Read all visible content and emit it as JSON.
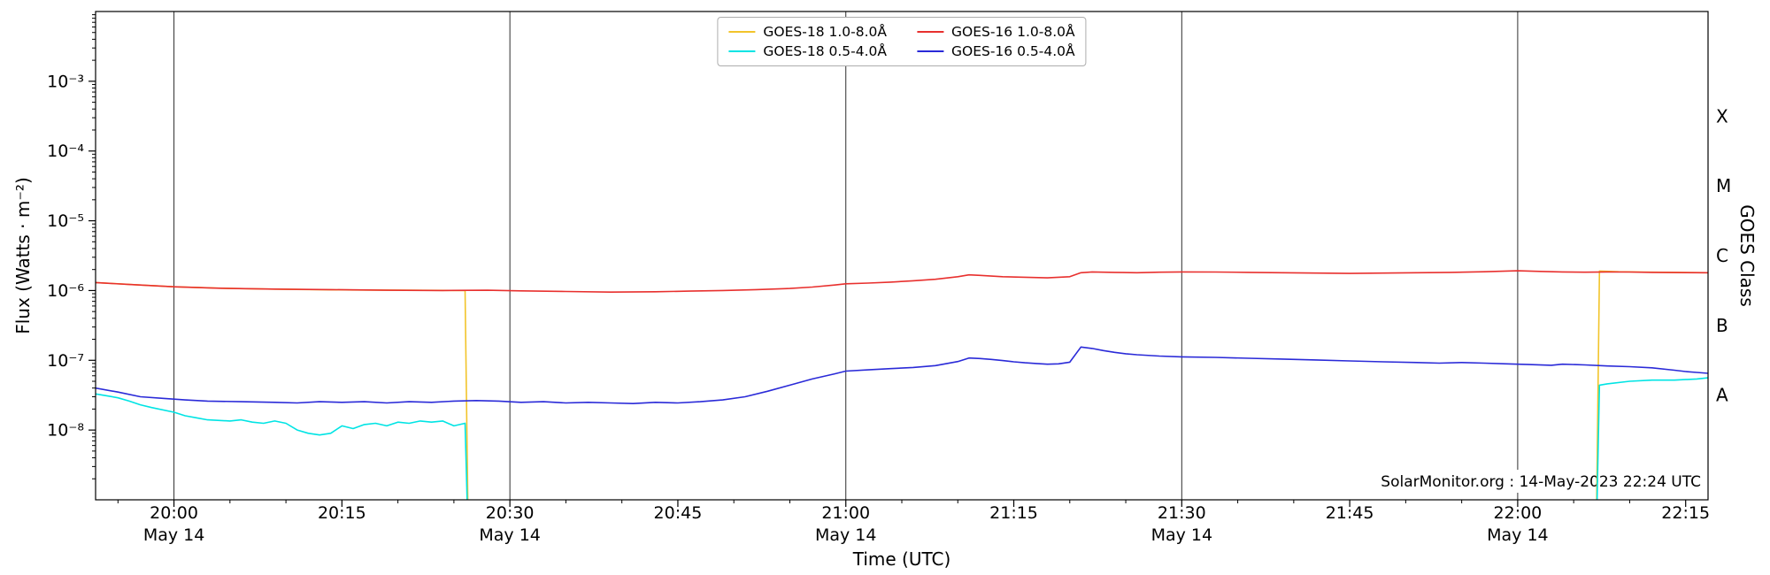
{
  "chart_data": {
    "type": "line",
    "title": "",
    "annotation": "SolarMonitor.org : 14-May-2023 22:24 UTC",
    "x_axis": {
      "label": "Time (UTC)",
      "unit": "minutes, t=0 corresponds to 19:53 UTC on 14-May-2023",
      "domain": [
        0,
        144
      ],
      "major_ticks": [
        {
          "t": 7,
          "label": "20:00",
          "date_label": "May 14",
          "gridline": true
        },
        {
          "t": 22,
          "label": "20:15"
        },
        {
          "t": 37,
          "label": "20:30",
          "date_label": "May 14",
          "gridline": true
        },
        {
          "t": 52,
          "label": "20:45"
        },
        {
          "t": 67,
          "label": "21:00",
          "date_label": "May 14",
          "gridline": true
        },
        {
          "t": 82,
          "label": "21:15"
        },
        {
          "t": 97,
          "label": "21:30",
          "date_label": "May 14",
          "gridline": true
        },
        {
          "t": 112,
          "label": "21:45"
        },
        {
          "t": 127,
          "label": "22:00",
          "date_label": "May 14",
          "gridline": true
        },
        {
          "t": 142,
          "label": "22:15"
        }
      ],
      "minor_tick_minutes": 5
    },
    "y_axis": {
      "label": "Flux (Watts · m⁻²)",
      "scale": "log",
      "domain_exp": [
        -9,
        -2
      ],
      "major_ticks": [
        {
          "exp": -3,
          "label": "10⁻³"
        },
        {
          "exp": -4,
          "label": "10⁻⁴"
        },
        {
          "exp": -5,
          "label": "10⁻⁵"
        },
        {
          "exp": -6,
          "label": "10⁻⁶"
        },
        {
          "exp": -7,
          "label": "10⁻⁷"
        },
        {
          "exp": -8,
          "label": "10⁻⁸"
        }
      ],
      "grid": false
    },
    "right_axis": {
      "label": "GOES Class",
      "ticks": [
        {
          "logv": -3.5,
          "label": "X"
        },
        {
          "logv": -4.5,
          "label": "M"
        },
        {
          "logv": -5.5,
          "label": "C"
        },
        {
          "logv": -6.5,
          "label": "B"
        },
        {
          "logv": -7.5,
          "label": "A"
        }
      ]
    },
    "legend_position": "upper center",
    "series": [
      {
        "name": "GOES-18 1.0-8.0Å",
        "color": "#f2c42a",
        "segments": [
          [
            [
              0,
              1.3e-06
            ],
            [
              4,
              1.2e-06
            ],
            [
              7,
              1.13e-06
            ],
            [
              12,
              1.07e-06
            ],
            [
              17,
              1.04e-06
            ],
            [
              23,
              1.02e-06
            ],
            [
              28,
              1.01e-06
            ],
            [
              33,
              1e-06
            ],
            [
              33.3,
              2e-10
            ]
          ],
          [
            [
              134,
              2e-10
            ],
            [
              134.3,
              1.9e-06
            ],
            [
              136,
              1.86e-06
            ],
            [
              138,
              1.84e-06
            ],
            [
              141,
              1.82e-06
            ],
            [
              144,
              1.8e-06
            ]
          ]
        ]
      },
      {
        "name": "GOES-18 0.5-4.0Å",
        "color": "#00e4e4",
        "segments": [
          [
            [
              0,
              3.3e-08
            ],
            [
              1,
              3.1e-08
            ],
            [
              2,
              2.9e-08
            ],
            [
              3,
              2.6e-08
            ],
            [
              4,
              2.3e-08
            ],
            [
              5,
              2.1e-08
            ],
            [
              7,
              1.8e-08
            ],
            [
              8,
              1.6e-08
            ],
            [
              9,
              1.5e-08
            ],
            [
              10,
              1.4e-08
            ],
            [
              12,
              1.35e-08
            ],
            [
              13,
              1.4e-08
            ],
            [
              14,
              1.3e-08
            ],
            [
              15,
              1.25e-08
            ],
            [
              16,
              1.35e-08
            ],
            [
              17,
              1.25e-08
            ],
            [
              18,
              1e-08
            ],
            [
              19,
              9e-09
            ],
            [
              20,
              8.5e-09
            ],
            [
              21,
              9e-09
            ],
            [
              22,
              1.15e-08
            ],
            [
              23,
              1.05e-08
            ],
            [
              24,
              1.2e-08
            ],
            [
              25,
              1.25e-08
            ],
            [
              26,
              1.15e-08
            ],
            [
              27,
              1.3e-08
            ],
            [
              28,
              1.25e-08
            ],
            [
              29,
              1.35e-08
            ],
            [
              30,
              1.3e-08
            ],
            [
              31,
              1.35e-08
            ],
            [
              32,
              1.15e-08
            ],
            [
              33,
              1.25e-08
            ],
            [
              33.3,
              2e-10
            ]
          ],
          [
            [
              134,
              2e-10
            ],
            [
              134.3,
              4.4e-08
            ],
            [
              135,
              4.6e-08
            ],
            [
              137,
              5e-08
            ],
            [
              139,
              5.2e-08
            ],
            [
              141,
              5.2e-08
            ],
            [
              143,
              5.4e-08
            ],
            [
              144,
              5.6e-08
            ]
          ]
        ]
      },
      {
        "name": "GOES-16 1.0-8.0Å",
        "color": "#e8302e",
        "segments": [
          [
            [
              0,
              1.3e-06
            ],
            [
              3,
              1.22e-06
            ],
            [
              7,
              1.13e-06
            ],
            [
              11,
              1.08e-06
            ],
            [
              16,
              1.05e-06
            ],
            [
              21,
              1.03e-06
            ],
            [
              26,
              1.01e-06
            ],
            [
              31,
              1e-06
            ],
            [
              35,
              1.01e-06
            ],
            [
              38,
              9.9e-07
            ],
            [
              42,
              9.7e-07
            ],
            [
              46,
              9.5e-07
            ],
            [
              50,
              9.6e-07
            ],
            [
              53,
              9.8e-07
            ],
            [
              56,
              1e-06
            ],
            [
              59,
              1.03e-06
            ],
            [
              62,
              1.07e-06
            ],
            [
              64,
              1.12e-06
            ],
            [
              66,
              1.2e-06
            ],
            [
              67,
              1.25e-06
            ],
            [
              69,
              1.28e-06
            ],
            [
              71,
              1.32e-06
            ],
            [
              73,
              1.38e-06
            ],
            [
              75,
              1.45e-06
            ],
            [
              77,
              1.58e-06
            ],
            [
              78,
              1.68e-06
            ],
            [
              79,
              1.65e-06
            ],
            [
              81,
              1.58e-06
            ],
            [
              83,
              1.55e-06
            ],
            [
              85,
              1.52e-06
            ],
            [
              86,
              1.55e-06
            ],
            [
              87,
              1.58e-06
            ],
            [
              88,
              1.8e-06
            ],
            [
              89,
              1.85e-06
            ],
            [
              91,
              1.82e-06
            ],
            [
              93,
              1.8e-06
            ],
            [
              95,
              1.83e-06
            ],
            [
              97,
              1.85e-06
            ],
            [
              100,
              1.84e-06
            ],
            [
              103,
              1.82e-06
            ],
            [
              106,
              1.8e-06
            ],
            [
              109,
              1.78e-06
            ],
            [
              112,
              1.76e-06
            ],
            [
              115,
              1.78e-06
            ],
            [
              118,
              1.8e-06
            ],
            [
              121,
              1.82e-06
            ],
            [
              124,
              1.86e-06
            ],
            [
              127,
              1.92e-06
            ],
            [
              129,
              1.88e-06
            ],
            [
              131,
              1.85e-06
            ],
            [
              133,
              1.83e-06
            ],
            [
              135,
              1.85e-06
            ],
            [
              137,
              1.84e-06
            ],
            [
              139,
              1.82e-06
            ],
            [
              141,
              1.81e-06
            ],
            [
              144,
              1.8e-06
            ]
          ]
        ]
      },
      {
        "name": "GOES-16 0.5-4.0Å",
        "color": "#2a2ad8",
        "segments": [
          [
            [
              0,
              4e-08
            ],
            [
              2,
              3.5e-08
            ],
            [
              4,
              3e-08
            ],
            [
              6,
              2.85e-08
            ],
            [
              8,
              2.7e-08
            ],
            [
              10,
              2.6e-08
            ],
            [
              13,
              2.55e-08
            ],
            [
              16,
              2.5e-08
            ],
            [
              18,
              2.45e-08
            ],
            [
              20,
              2.55e-08
            ],
            [
              22,
              2.5e-08
            ],
            [
              24,
              2.55e-08
            ],
            [
              26,
              2.45e-08
            ],
            [
              28,
              2.55e-08
            ],
            [
              30,
              2.5e-08
            ],
            [
              32,
              2.6e-08
            ],
            [
              34,
              2.65e-08
            ],
            [
              36,
              2.6e-08
            ],
            [
              38,
              2.5e-08
            ],
            [
              40,
              2.55e-08
            ],
            [
              42,
              2.45e-08
            ],
            [
              44,
              2.5e-08
            ],
            [
              46,
              2.45e-08
            ],
            [
              48,
              2.4e-08
            ],
            [
              50,
              2.5e-08
            ],
            [
              52,
              2.45e-08
            ],
            [
              54,
              2.55e-08
            ],
            [
              56,
              2.7e-08
            ],
            [
              58,
              3e-08
            ],
            [
              60,
              3.6e-08
            ],
            [
              62,
              4.4e-08
            ],
            [
              64,
              5.4e-08
            ],
            [
              66,
              6.4e-08
            ],
            [
              67,
              7e-08
            ],
            [
              69,
              7.3e-08
            ],
            [
              71,
              7.6e-08
            ],
            [
              73,
              7.9e-08
            ],
            [
              75,
              8.4e-08
            ],
            [
              77,
              9.6e-08
            ],
            [
              78,
              1.08e-07
            ],
            [
              79,
              1.06e-07
            ],
            [
              80,
              1.03e-07
            ],
            [
              81,
              9.9e-08
            ],
            [
              82,
              9.5e-08
            ],
            [
              83,
              9.2e-08
            ],
            [
              84,
              9e-08
            ],
            [
              85,
              8.8e-08
            ],
            [
              86,
              8.9e-08
            ],
            [
              87,
              9.4e-08
            ],
            [
              88,
              1.55e-07
            ],
            [
              89,
              1.48e-07
            ],
            [
              90,
              1.38e-07
            ],
            [
              91,
              1.3e-07
            ],
            [
              92,
              1.24e-07
            ],
            [
              93,
              1.2e-07
            ],
            [
              95,
              1.15e-07
            ],
            [
              97,
              1.12e-07
            ],
            [
              100,
              1.1e-07
            ],
            [
              103,
              1.07e-07
            ],
            [
              106,
              1.04e-07
            ],
            [
              109,
              1.01e-07
            ],
            [
              112,
              9.8e-08
            ],
            [
              115,
              9.5e-08
            ],
            [
              118,
              9.3e-08
            ],
            [
              120,
              9.1e-08
            ],
            [
              122,
              9.3e-08
            ],
            [
              124,
              9.1e-08
            ],
            [
              126,
              8.9e-08
            ],
            [
              128,
              8.7e-08
            ],
            [
              130,
              8.5e-08
            ],
            [
              131,
              8.8e-08
            ],
            [
              133,
              8.6e-08
            ],
            [
              135,
              8.3e-08
            ],
            [
              137,
              8.1e-08
            ],
            [
              139,
              7.8e-08
            ],
            [
              141,
              7.2e-08
            ],
            [
              142,
              6.9e-08
            ],
            [
              143,
              6.7e-08
            ],
            [
              144,
              6.5e-08
            ]
          ]
        ]
      }
    ]
  }
}
